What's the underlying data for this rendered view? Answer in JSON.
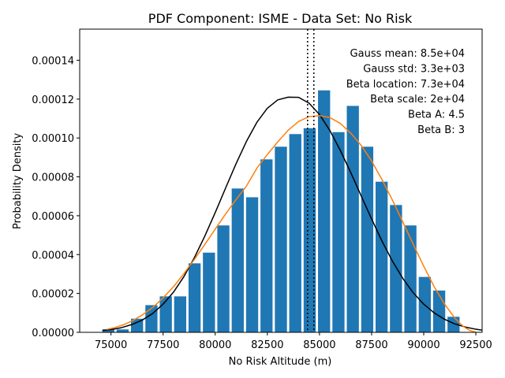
{
  "chart_data": {
    "type": "bar",
    "title": "PDF Component: ISME - Data Set: No Risk",
    "xlabel": "No Risk Altitude (m)",
    "ylabel": "Probability Density",
    "xlim": [
      73500,
      92800
    ],
    "ylim": [
      0,
      0.000156
    ],
    "bar_width": 580,
    "x_ticks": [
      75000,
      77500,
      80000,
      82500,
      85000,
      87500,
      90000,
      92500
    ],
    "x_tick_labels": [
      "75000",
      "77500",
      "80000",
      "82500",
      "85000",
      "87500",
      "90000",
      "92500"
    ],
    "y_ticks": [
      0,
      2e-05,
      4e-05,
      6e-05,
      8e-05,
      0.0001,
      0.00012,
      0.00014
    ],
    "y_tick_labels": [
      "0.00000",
      "0.00002",
      "0.00004",
      "0.00006",
      "0.00008",
      "0.00010",
      "0.00012",
      "0.00014"
    ],
    "histogram": {
      "color": "#1f77b4",
      "x": [
        74870,
        75560,
        76250,
        76940,
        77630,
        78320,
        79010,
        79700,
        80390,
        81080,
        81770,
        82460,
        83150,
        83840,
        84530,
        85220,
        85910,
        86600,
        87290,
        87980,
        88670,
        89360,
        90050,
        90740,
        91430
      ],
      "values": [
        1.5e-06,
        1.5e-06,
        7e-06,
        1.4e-05,
        1.85e-05,
        1.85e-05,
        3.55e-05,
        4.1e-05,
        5.5e-05,
        7.4e-05,
        6.95e-05,
        8.9e-05,
        9.55e-05,
        0.000102,
        0.000105,
        0.0001245,
        0.000103,
        0.0001165,
        9.55e-05,
        7.75e-05,
        6.55e-05,
        5.5e-05,
        2.85e-05,
        2.15e-05,
        8e-06
      ]
    },
    "series": [
      {
        "name": "Gauss",
        "color": "#000000",
        "x": [
          74600,
          75000,
          75500,
          76000,
          76500,
          77000,
          77500,
          78000,
          78500,
          79000,
          79500,
          80000,
          80500,
          81000,
          81500,
          82000,
          82500,
          83000,
          83500,
          84000,
          84500,
          85000,
          85500,
          86000,
          86500,
          87000,
          87500,
          88000,
          88500,
          89000,
          89500,
          90000,
          90500,
          91000,
          91500,
          92000,
          92500,
          92800
        ],
        "values": [
          1e-06,
          1.4e-06,
          2.4e-06,
          4e-06,
          6.3e-06,
          9.7e-06,
          1.45e-05,
          2.07e-05,
          2.87e-05,
          3.84e-05,
          4.95e-05,
          6.16e-05,
          7.43e-05,
          8.68e-05,
          9.83e-05,
          0.0001081,
          0.0001153,
          0.0001196,
          0.000121,
          0.0001209,
          0.0001179,
          0.0001121,
          0.0001038,
          9.36e-05,
          8.22e-05,
          7.02e-05,
          5.83e-05,
          4.69e-05,
          3.66e-05,
          2.77e-05,
          2.03e-05,
          1.45e-05,
          1e-05,
          6.7e-06,
          4.3e-06,
          2.7e-06,
          1.6e-06,
          1.1e-06
        ]
      },
      {
        "name": "Beta",
        "color": "#ff7f0e",
        "x": [
          74800,
          75200,
          75600,
          76000,
          76500,
          77000,
          77500,
          78000,
          78500,
          79000,
          79500,
          80000,
          80500,
          81000,
          81500,
          82000,
          82500,
          83000,
          83500,
          84000,
          84500,
          85000,
          85500,
          86000,
          86500,
          87000,
          87500,
          88000,
          88500,
          89000,
          89500,
          90000,
          90500,
          91000,
          91500,
          91900,
          92200,
          92500
        ],
        "values": [
          1.5e-06,
          2.5e-06,
          3.9e-06,
          5.8e-06,
          8.9e-06,
          1.28e-05,
          1.77e-05,
          2.35e-05,
          3.02e-05,
          3.75e-05,
          4.52e-05,
          5.31e-05,
          6.09e-05,
          6.83e-05,
          7.53e-05,
          8.45e-05,
          9.15e-05,
          9.8e-05,
          0.000104,
          0.0001085,
          0.000111,
          0.0001115,
          0.0001105,
          0.0001075,
          0.0001025,
          9.62e-05,
          8.82e-05,
          7.85e-05,
          6.8e-05,
          5.67e-05,
          4.52e-05,
          3.4e-05,
          2.35e-05,
          1.45e-05,
          7.2e-06,
          3e-06,
          1e-06,
          0
        ]
      }
    ],
    "vlines": [
      {
        "x": 84430,
        "color": "#000000",
        "style": "dotted"
      },
      {
        "x": 84730,
        "color": "#000000",
        "style": "dotted"
      }
    ],
    "annotations": [
      "Gauss mean: 8.5e+04",
      "Gauss std: 3.3e+03",
      "Beta location: 7.3e+04",
      "Beta scale: 2e+04",
      "Beta A: 4.5",
      "Beta B: 3"
    ],
    "annotation_placement": "top-right",
    "grid": false
  }
}
